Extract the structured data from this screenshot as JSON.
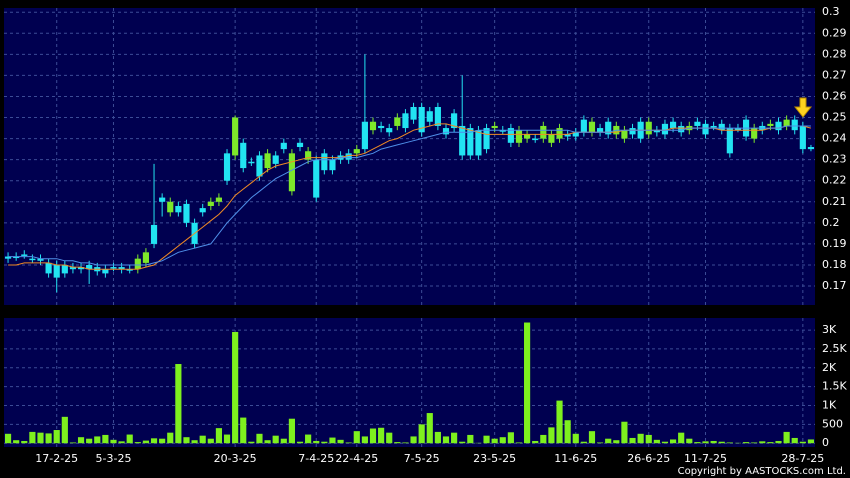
{
  "chart_data": {
    "type": "candlestick",
    "categories": [
      null,
      null,
      null,
      null,
      null,
      null,
      "17-2-25",
      null,
      null,
      null,
      null,
      null,
      null,
      "5-3-25",
      null,
      null,
      null,
      null,
      null,
      null,
      null,
      null,
      null,
      null,
      null,
      null,
      null,
      null,
      "20-3-25",
      null,
      null,
      null,
      null,
      null,
      null,
      null,
      null,
      null,
      "7-4-25",
      null,
      null,
      null,
      null,
      "22-4-25",
      null,
      null,
      null,
      null,
      null,
      null,
      null,
      "7-5-25",
      null,
      null,
      null,
      null,
      null,
      null,
      null,
      null,
      "23-5-25",
      null,
      null,
      null,
      null,
      null,
      null,
      null,
      null,
      null,
      "11-6-25",
      null,
      null,
      null,
      null,
      null,
      null,
      null,
      null,
      "26-6-25",
      null,
      null,
      null,
      null,
      null,
      null,
      "11-7-25",
      null,
      null,
      null,
      null,
      null,
      null,
      null,
      null,
      null,
      null,
      null,
      "28-7-25",
      null
    ],
    "open": [
      0.184,
      0.184,
      0.185,
      0.183,
      0.183,
      0.181,
      0.18,
      0.18,
      0.179,
      0.179,
      0.18,
      0.179,
      0.178,
      0.179,
      0.179,
      0.178,
      0.178,
      0.181,
      0.199,
      0.212,
      0.205,
      0.208,
      0.209,
      0.2,
      0.207,
      0.208,
      0.21,
      0.233,
      0.232,
      0.238,
      0.229,
      0.232,
      0.226,
      0.232,
      0.238,
      0.215,
      0.238,
      0.23,
      0.23,
      0.233,
      0.23,
      0.232,
      0.233,
      0.233,
      0.248,
      0.244,
      0.246,
      0.245,
      0.246,
      0.252,
      0.255,
      0.255,
      0.253,
      0.255,
      0.245,
      0.252,
      0.246,
      0.245,
      0.244,
      0.245,
      0.245,
      0.244,
      0.245,
      0.238,
      0.24,
      0.24,
      0.24,
      0.238,
      0.24,
      0.242,
      0.243,
      0.249,
      0.243,
      0.245,
      0.248,
      0.242,
      0.24,
      0.245,
      0.248,
      0.242,
      0.244,
      0.247,
      0.248,
      0.246,
      0.244,
      0.248,
      0.247,
      0.246,
      0.247,
      0.245,
      0.245,
      0.249,
      0.24,
      0.246,
      0.246,
      0.248,
      0.246,
      0.249,
      0.246,
      0.236
    ],
    "high": [
      0.186,
      0.186,
      0.187,
      0.185,
      0.185,
      0.183,
      0.182,
      0.182,
      0.181,
      0.181,
      0.182,
      0.181,
      0.18,
      0.181,
      0.181,
      0.18,
      0.185,
      0.188,
      0.228,
      0.214,
      0.212,
      0.21,
      0.211,
      0.202,
      0.209,
      0.212,
      0.214,
      0.235,
      0.251,
      0.24,
      0.231,
      0.234,
      0.235,
      0.234,
      0.24,
      0.235,
      0.24,
      0.236,
      0.232,
      0.235,
      0.232,
      0.234,
      0.235,
      0.237,
      0.28,
      0.25,
      0.248,
      0.247,
      0.252,
      0.254,
      0.257,
      0.257,
      0.255,
      0.257,
      0.247,
      0.254,
      0.27,
      0.247,
      0.246,
      0.247,
      0.248,
      0.246,
      0.247,
      0.246,
      0.244,
      0.242,
      0.248,
      0.244,
      0.247,
      0.244,
      0.245,
      0.251,
      0.25,
      0.247,
      0.25,
      0.248,
      0.246,
      0.247,
      0.25,
      0.25,
      0.246,
      0.249,
      0.25,
      0.248,
      0.248,
      0.25,
      0.249,
      0.248,
      0.249,
      0.247,
      0.247,
      0.251,
      0.247,
      0.248,
      0.249,
      0.25,
      0.251,
      0.251,
      0.248,
      0.237
    ],
    "low": [
      0.181,
      0.182,
      0.183,
      0.181,
      0.18,
      0.174,
      0.167,
      0.174,
      0.176,
      0.176,
      0.171,
      0.175,
      0.174,
      0.177,
      0.176,
      0.176,
      0.176,
      0.179,
      0.188,
      0.203,
      0.203,
      0.203,
      0.198,
      0.188,
      0.203,
      0.206,
      0.208,
      0.218,
      0.23,
      0.224,
      0.227,
      0.22,
      0.224,
      0.226,
      0.233,
      0.213,
      0.234,
      0.228,
      0.21,
      0.223,
      0.223,
      0.228,
      0.228,
      0.231,
      0.233,
      0.242,
      0.243,
      0.241,
      0.244,
      0.243,
      0.247,
      0.241,
      0.246,
      0.244,
      0.24,
      0.243,
      0.23,
      0.23,
      0.23,
      0.233,
      0.243,
      0.242,
      0.236,
      0.236,
      0.238,
      0.238,
      0.238,
      0.236,
      0.238,
      0.239,
      0.239,
      0.241,
      0.241,
      0.241,
      0.24,
      0.24,
      0.238,
      0.24,
      0.238,
      0.24,
      0.241,
      0.24,
      0.243,
      0.241,
      0.242,
      0.244,
      0.24,
      0.244,
      0.242,
      0.231,
      0.243,
      0.239,
      0.238,
      0.242,
      0.244,
      0.242,
      0.244,
      0.242,
      0.233,
      0.234
    ],
    "close": [
      0.183,
      0.184,
      0.185,
      0.183,
      0.182,
      0.176,
      0.174,
      0.176,
      0.178,
      0.178,
      0.178,
      0.177,
      0.176,
      0.179,
      0.178,
      0.178,
      0.183,
      0.186,
      0.19,
      0.21,
      0.21,
      0.205,
      0.2,
      0.19,
      0.205,
      0.21,
      0.212,
      0.22,
      0.25,
      0.226,
      0.229,
      0.222,
      0.233,
      0.228,
      0.235,
      0.233,
      0.236,
      0.234,
      0.212,
      0.225,
      0.225,
      0.23,
      0.23,
      0.235,
      0.235,
      0.248,
      0.245,
      0.243,
      0.25,
      0.245,
      0.249,
      0.243,
      0.248,
      0.246,
      0.242,
      0.245,
      0.232,
      0.232,
      0.232,
      0.235,
      0.246,
      0.244,
      0.238,
      0.244,
      0.242,
      0.24,
      0.246,
      0.242,
      0.245,
      0.241,
      0.241,
      0.243,
      0.248,
      0.243,
      0.242,
      0.246,
      0.244,
      0.242,
      0.24,
      0.248,
      0.243,
      0.242,
      0.245,
      0.243,
      0.246,
      0.246,
      0.242,
      0.246,
      0.244,
      0.233,
      0.244,
      0.241,
      0.245,
      0.244,
      0.247,
      0.244,
      0.249,
      0.244,
      0.235,
      0.235
    ],
    "up_color": "#7ee82a",
    "down_color": "#22e4f2",
    "lines": [
      {
        "color": "#f08a24",
        "values": [
          0.18,
          0.18,
          0.181,
          0.181,
          0.181,
          0.181,
          0.18,
          0.18,
          0.179,
          0.179,
          0.178,
          0.178,
          0.178,
          0.178,
          0.178,
          0.178,
          0.178,
          0.179,
          0.18,
          0.183,
          0.186,
          0.189,
          0.192,
          0.195,
          0.198,
          0.201,
          0.204,
          0.208,
          0.213,
          0.216,
          0.219,
          0.222,
          0.225,
          0.227,
          0.228,
          0.229,
          0.23,
          0.231,
          0.231,
          0.231,
          0.231,
          0.231,
          0.232,
          0.232,
          0.233,
          0.235,
          0.237,
          0.239,
          0.24,
          0.242,
          0.244,
          0.245,
          0.246,
          0.247,
          0.247,
          0.246,
          0.245,
          0.244,
          0.243,
          0.242,
          0.242,
          0.242,
          0.242,
          0.242,
          0.242,
          0.242,
          0.242,
          0.242,
          0.242,
          0.242,
          0.243,
          0.243,
          0.243,
          0.243,
          0.243,
          0.243,
          0.244,
          0.244,
          0.244,
          0.244,
          0.244,
          0.244,
          0.245,
          0.245,
          0.245,
          0.245,
          0.245,
          0.245,
          0.244,
          0.244,
          0.244,
          0.244,
          0.244,
          0.244,
          0.245,
          0.245,
          0.246,
          0.246,
          0.246,
          0.245
        ]
      },
      {
        "color": "#4f8fe8",
        "values": [
          0.184,
          0.184,
          0.184,
          0.184,
          0.183,
          0.183,
          0.183,
          0.182,
          0.182,
          0.181,
          0.181,
          0.18,
          0.18,
          0.18,
          0.18,
          0.18,
          0.18,
          0.18,
          0.181,
          0.182,
          0.184,
          0.186,
          0.187,
          0.188,
          0.189,
          0.19,
          0.195,
          0.2,
          0.204,
          0.208,
          0.212,
          0.215,
          0.218,
          0.221,
          0.223,
          0.225,
          0.227,
          0.229,
          0.23,
          0.23,
          0.23,
          0.231,
          0.231,
          0.231,
          0.232,
          0.233,
          0.235,
          0.236,
          0.237,
          0.238,
          0.239,
          0.24,
          0.241,
          0.242,
          0.243,
          0.243,
          0.243,
          0.243,
          0.244,
          0.244,
          0.244,
          0.244,
          0.244,
          0.244,
          0.244,
          0.244,
          0.244,
          0.244,
          0.244,
          0.244,
          0.243,
          0.243,
          0.243,
          0.243,
          0.243,
          0.244,
          0.244,
          0.244,
          0.244,
          0.244,
          0.244,
          0.244,
          0.244,
          0.244,
          0.245,
          0.245,
          0.245,
          0.245,
          0.245,
          0.245,
          0.245,
          0.245,
          0.245,
          0.245,
          0.245,
          0.245,
          0.246,
          0.246,
          0.246,
          0.246
        ]
      }
    ],
    "ylim": [
      0.161,
      0.302
    ],
    "yticks": [
      0.17,
      0.18,
      0.19,
      0.2,
      0.21,
      0.22,
      0.23,
      0.24,
      0.25,
      0.26,
      0.27,
      0.28,
      0.29,
      0.3
    ],
    "grid": true,
    "volume": {
      "color": "#7ef01e",
      "values": [
        250,
        80,
        60,
        300,
        280,
        260,
        350,
        700,
        20,
        160,
        120,
        180,
        220,
        90,
        50,
        230,
        30,
        70,
        130,
        120,
        280,
        2100,
        160,
        80,
        200,
        120,
        400,
        230,
        2950,
        680,
        40,
        250,
        80,
        200,
        120,
        650,
        40,
        230,
        60,
        40,
        150,
        90,
        20,
        320,
        180,
        390,
        410,
        280,
        30,
        20,
        180,
        500,
        800,
        300,
        180,
        280,
        40,
        220,
        10,
        200,
        120,
        160,
        290,
        20,
        3200,
        60,
        220,
        420,
        1130,
        610,
        250,
        40,
        320,
        20,
        120,
        80,
        570,
        140,
        250,
        220,
        90,
        40,
        100,
        280,
        120,
        30,
        50,
        60,
        40,
        20,
        10,
        30,
        20,
        50,
        30,
        60,
        300,
        140,
        40,
        100
      ],
      "ylim": [
        -100,
        3320
      ],
      "yticks": [
        0,
        500,
        {
          "value": 1000,
          "label": "1K"
        },
        {
          "value": 1500,
          "label": "1.5K"
        },
        {
          "value": 2000,
          "label": "2K"
        },
        {
          "value": 2500,
          "label": "2.5K"
        },
        {
          "value": 3000,
          "label": "3K"
        }
      ]
    },
    "source": "Copyright by AASTOCKS.com Ltd."
  }
}
